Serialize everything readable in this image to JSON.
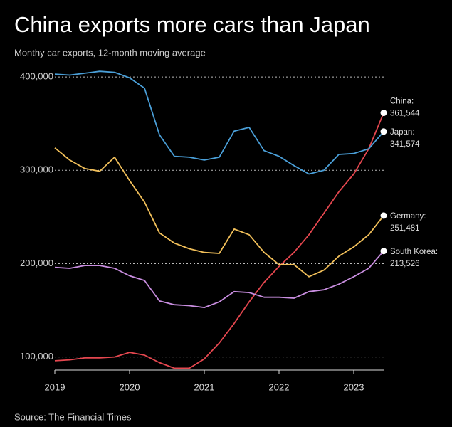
{
  "chart_data": {
    "type": "line",
    "title": "China exports more cars than Japan",
    "subtitle": "Monthy car exports, 12-month moving average",
    "source": "Source: The Financial Times",
    "x": [
      2019.0,
      2019.2,
      2019.4,
      2019.6,
      2019.8,
      2020.0,
      2020.2,
      2020.4,
      2020.6,
      2020.8,
      2021.0,
      2021.2,
      2021.4,
      2021.6,
      2021.8,
      2022.0,
      2022.2,
      2022.4,
      2022.6,
      2022.8,
      2023.0,
      2023.2,
      2023.4
    ],
    "xlim": [
      2019,
      2023.4
    ],
    "xticks": [
      2019,
      2020,
      2021,
      2022,
      2023
    ],
    "ylim": [
      86000,
      410000
    ],
    "yticks": [
      {
        "value": 100000,
        "label": "100,000"
      },
      {
        "value": 200000,
        "label": "200,000"
      },
      {
        "value": 300000,
        "label": "300,000"
      },
      {
        "value": 400000,
        "label": "400,000"
      }
    ],
    "grid": true,
    "series": [
      {
        "name": "China:",
        "color": "#e5474f",
        "values": [
          96000,
          97000,
          99000,
          99000,
          100000,
          105000,
          102000,
          94000,
          88000,
          88000,
          98000,
          115000,
          136000,
          159000,
          180000,
          197000,
          212000,
          231000,
          254000,
          277000,
          296000,
          323000,
          361544
        ],
        "value_labels": [
          null,
          null,
          null,
          null,
          null,
          null,
          null,
          null,
          null,
          null,
          null,
          null,
          null,
          null,
          null,
          null,
          null,
          null,
          null,
          null,
          null,
          null,
          "361,544"
        ]
      },
      {
        "name": "Japan:",
        "color": "#4a9fd8",
        "values": [
          403000,
          402000,
          404000,
          406000,
          405000,
          399000,
          388000,
          338000,
          315000,
          314000,
          311000,
          314000,
          342000,
          346000,
          321000,
          315000,
          305000,
          296000,
          300000,
          317000,
          318000,
          323000,
          341574
        ],
        "value_labels": [
          null,
          null,
          null,
          null,
          null,
          null,
          null,
          null,
          null,
          null,
          null,
          null,
          null,
          null,
          null,
          null,
          null,
          null,
          null,
          null,
          null,
          null,
          "341,574"
        ]
      },
      {
        "name": "Germany:",
        "color": "#f2c05a",
        "values": [
          324000,
          311000,
          302000,
          299000,
          314000,
          289000,
          266000,
          233000,
          222000,
          216000,
          212000,
          211000,
          237000,
          231000,
          212000,
          199000,
          199000,
          186000,
          193000,
          208000,
          218000,
          231000,
          251481
        ],
        "value_labels": [
          null,
          null,
          null,
          null,
          null,
          null,
          null,
          null,
          null,
          null,
          null,
          null,
          null,
          null,
          null,
          null,
          null,
          null,
          null,
          null,
          null,
          null,
          "251,481"
        ]
      },
      {
        "name": "South Korea:",
        "color": "#c98ee0",
        "values": [
          196000,
          195000,
          198000,
          198000,
          195000,
          187000,
          182000,
          160000,
          156000,
          155000,
          153000,
          159000,
          170000,
          169000,
          164000,
          164000,
          163000,
          170000,
          172000,
          178000,
          186000,
          195000,
          213526
        ],
        "value_labels": [
          null,
          null,
          null,
          null,
          null,
          null,
          null,
          null,
          null,
          null,
          null,
          null,
          null,
          null,
          null,
          null,
          null,
          null,
          null,
          null,
          null,
          null,
          "213,526"
        ]
      }
    ]
  }
}
